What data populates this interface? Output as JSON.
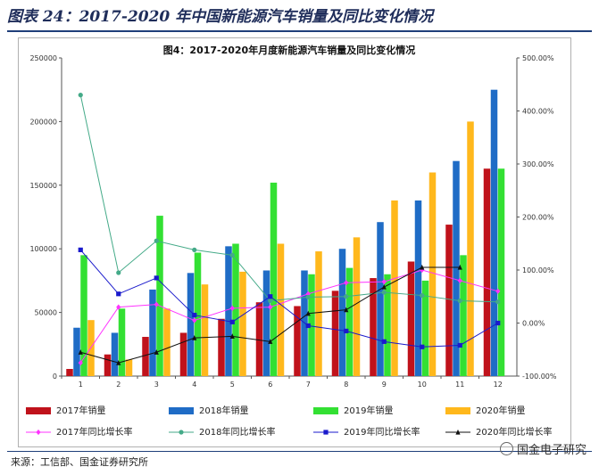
{
  "header": {
    "title": "图表 24：2017-2020 年中国新能源汽车销量及同比变化情况"
  },
  "source": {
    "text": "来源：工信部、国金证券研究所"
  },
  "watermark": {
    "text": "国金电子研究"
  },
  "chart_data": {
    "type": "bar",
    "title": "图4：2017-2020年月度新能源汽车销量及同比变化情况",
    "categories": [
      "1",
      "2",
      "3",
      "4",
      "5",
      "6",
      "7",
      "8",
      "9",
      "10",
      "11",
      "12"
    ],
    "y_left": {
      "ticks": [
        0,
        50000,
        100000,
        150000,
        200000,
        250000
      ],
      "tick_labels": [
        "0",
        "50000",
        "100000",
        "150000",
        "200000",
        "250000"
      ],
      "ylim": [
        0,
        250000
      ]
    },
    "y_right": {
      "ticks": [
        -1,
        0,
        1,
        2,
        3,
        4,
        5
      ],
      "tick_labels": [
        "-100.00%",
        "0.00%",
        "100.00%",
        "200.00%",
        "300.00%",
        "400.00%",
        "500.00%"
      ],
      "ylim": [
        -1,
        5
      ]
    },
    "bar_series": [
      {
        "name": "2017年销量",
        "color": "#c0121b",
        "values": [
          5600,
          17000,
          30800,
          34000,
          45000,
          58000,
          55000,
          67000,
          77000,
          90000,
          119000,
          163000
        ]
      },
      {
        "name": "2018年销量",
        "color": "#1f6cc6",
        "values": [
          38000,
          34000,
          68000,
          81000,
          102000,
          83000,
          83000,
          100000,
          121000,
          138000,
          169000,
          225000
        ]
      },
      {
        "name": "2019年销量",
        "color": "#33e033",
        "values": [
          95000,
          53000,
          126000,
          97000,
          104000,
          152000,
          80000,
          85000,
          80000,
          75000,
          95000,
          163000
        ]
      },
      {
        "name": "2020年销量",
        "color": "#ffb81c",
        "values": [
          44000,
          13000,
          53000,
          72000,
          82000,
          104000,
          98000,
          109000,
          138000,
          160000,
          200000,
          0
        ]
      }
    ],
    "line_series": [
      {
        "name": "2017年同比增长率",
        "color": "#ff33ff",
        "marker": "diamond",
        "values": [
          -0.75,
          0.3,
          0.35,
          0.05,
          0.28,
          0.3,
          0.55,
          0.76,
          0.78,
          1.0,
          0.8,
          0.6
        ]
      },
      {
        "name": "2018年同比增长率",
        "color": "#44aa88",
        "marker": "circle",
        "values": [
          4.3,
          0.95,
          1.55,
          1.38,
          1.28,
          0.42,
          0.49,
          0.5,
          0.58,
          0.52,
          0.42,
          0.4
        ]
      },
      {
        "name": "2019年同比增长率",
        "color": "#1a1acc",
        "marker": "square",
        "values": [
          1.38,
          0.55,
          0.85,
          0.15,
          0.02,
          0.5,
          -0.05,
          -0.15,
          -0.35,
          -0.45,
          -0.42,
          0.0
        ]
      },
      {
        "name": "2020年同比增长率",
        "color": "#111111",
        "marker": "triangle",
        "values": [
          -0.55,
          -0.75,
          -0.55,
          -0.28,
          -0.25,
          -0.35,
          0.18,
          0.25,
          0.68,
          1.05,
          1.05,
          null
        ]
      }
    ],
    "legend_position": "bottom"
  }
}
